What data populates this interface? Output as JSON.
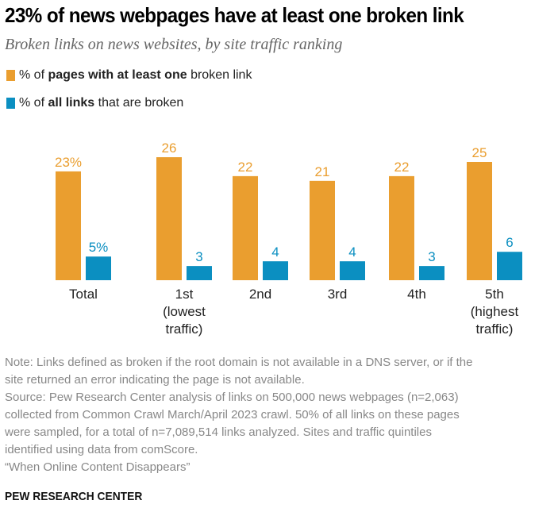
{
  "header": {
    "title": "23% of news webpages have at least one broken link",
    "subtitle": "Broken links on news websites, by site traffic ranking"
  },
  "legend": [
    {
      "prefix": "% of ",
      "bold": "pages with at least one",
      "suffix": " broken link",
      "color": "#EA9E2F"
    },
    {
      "prefix": "% of ",
      "bold": "all links",
      "suffix": " that are broken",
      "color": "#0B8FC1"
    }
  ],
  "chart_data": {
    "type": "bar",
    "title": "23% of news webpages have at least one broken link",
    "subtitle": "Broken links on news websites, by site traffic ranking",
    "xlabel": "",
    "ylabel": "",
    "ylim": [
      0,
      26
    ],
    "grid": false,
    "legend_position": "top-left",
    "categories": [
      [
        "Total"
      ],
      [
        "1st",
        "(lowest",
        "traffic)"
      ],
      [
        "2nd"
      ],
      [
        "3rd"
      ],
      [
        "4th"
      ],
      [
        "5th",
        "(highest",
        "traffic)"
      ]
    ],
    "series": [
      {
        "name": "% of pages with at least one broken link",
        "color": "#EA9E2F",
        "values": [
          23,
          26,
          22,
          21,
          22,
          25
        ],
        "labels": [
          "23%",
          "26",
          "22",
          "21",
          "22",
          "25"
        ]
      },
      {
        "name": "% of all links that are broken",
        "color": "#0B8FC1",
        "values": [
          5,
          3,
          4,
          4,
          3,
          6
        ],
        "labels": [
          "5%",
          "3",
          "4",
          "4",
          "3",
          "6"
        ]
      }
    ]
  },
  "notes": [
    "Note: Links defined as broken if the root domain is not available in a DNS server, or if the",
    "site returned an error indicating the page is not available.",
    "Source: Pew Research Center analysis of links on 500,000 news webpages (n=2,063)",
    "collected from Common Crawl March/April 2023 crawl. 50% of all links on these pages",
    "were sampled, for a total of n=7,089,514 links analyzed. Sites and traffic quintiles",
    "identified using data from comScore.",
    "“When Online Content Disappears”"
  ],
  "credit": "PEW RESEARCH CENTER"
}
